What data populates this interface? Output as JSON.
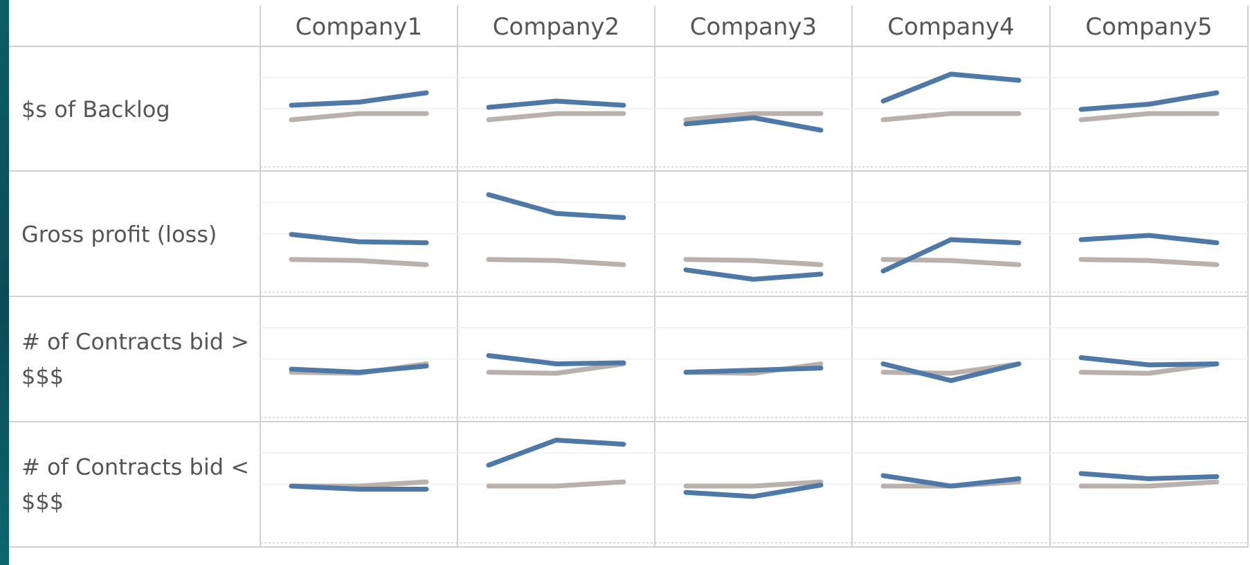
{
  "chart_data": {
    "type": "line",
    "columns": [
      "Company1",
      "Company2",
      "Company3",
      "Company4",
      "Company5"
    ],
    "rows": [
      {
        "label": [
          "$s of Backlog"
        ],
        "ylim": [
          0,
          10
        ]
      },
      {
        "label": [
          "Gross profit (loss)"
        ],
        "ylim": [
          0,
          10
        ]
      },
      {
        "label": [
          "# of Contracts bid >",
          "$$$"
        ],
        "ylim": [
          0,
          10
        ]
      },
      {
        "label": [
          "# of Contracts bid <",
          "$$$"
        ],
        "ylim": [
          0,
          10
        ]
      }
    ],
    "x": [
      1,
      2,
      3
    ],
    "series_colors": {
      "company": "#4e79a7",
      "benchmark": "#bab0ac"
    },
    "cells": [
      [
        {
          "company": [
            5.4,
            5.7,
            6.6
          ],
          "benchmark": [
            4.0,
            4.6,
            4.6
          ]
        },
        {
          "company": [
            5.2,
            5.8,
            5.4
          ],
          "benchmark": [
            4.0,
            4.6,
            4.6
          ]
        },
        {
          "company": [
            3.6,
            4.2,
            3.0
          ],
          "benchmark": [
            4.0,
            4.6,
            4.6
          ]
        },
        {
          "company": [
            5.8,
            8.4,
            7.8
          ],
          "benchmark": [
            4.0,
            4.6,
            4.6
          ]
        },
        {
          "company": [
            5.0,
            5.5,
            6.6
          ],
          "benchmark": [
            4.0,
            4.6,
            4.6
          ]
        }
      ],
      [
        {
          "company": [
            5.0,
            4.3,
            4.2
          ],
          "benchmark": [
            2.6,
            2.5,
            2.1
          ]
        },
        {
          "company": [
            8.8,
            7.0,
            6.6
          ],
          "benchmark": [
            2.6,
            2.5,
            2.1
          ]
        },
        {
          "company": [
            1.6,
            0.7,
            1.2
          ],
          "benchmark": [
            2.6,
            2.5,
            2.1
          ]
        },
        {
          "company": [
            1.5,
            4.5,
            4.2
          ],
          "benchmark": [
            2.6,
            2.5,
            2.1
          ]
        },
        {
          "company": [
            4.5,
            4.9,
            4.2
          ],
          "benchmark": [
            2.6,
            2.5,
            2.1
          ]
        }
      ],
      [
        {
          "company": [
            4.1,
            3.8,
            4.4
          ],
          "benchmark": [
            3.8,
            3.7,
            4.6
          ]
        },
        {
          "company": [
            5.4,
            4.6,
            4.7
          ],
          "benchmark": [
            3.8,
            3.7,
            4.6
          ]
        },
        {
          "company": [
            3.8,
            4.0,
            4.2
          ],
          "benchmark": [
            3.8,
            3.7,
            4.6
          ]
        },
        {
          "company": [
            4.6,
            3.0,
            4.6
          ],
          "benchmark": [
            3.8,
            3.7,
            4.6
          ]
        },
        {
          "company": [
            5.2,
            4.5,
            4.6
          ],
          "benchmark": [
            3.8,
            3.7,
            4.6
          ]
        }
      ],
      [
        {
          "company": [
            4.9,
            4.6,
            4.6
          ],
          "benchmark": [
            4.9,
            4.9,
            5.3
          ]
        },
        {
          "company": [
            6.9,
            9.3,
            8.9
          ],
          "benchmark": [
            4.9,
            4.9,
            5.3
          ]
        },
        {
          "company": [
            4.3,
            3.9,
            5.0
          ],
          "benchmark": [
            4.9,
            4.9,
            5.3
          ]
        },
        {
          "company": [
            5.9,
            4.9,
            5.6
          ],
          "benchmark": [
            4.9,
            4.9,
            5.3
          ]
        },
        {
          "company": [
            6.1,
            5.6,
            5.8
          ],
          "benchmark": [
            4.9,
            4.9,
            5.3
          ]
        }
      ]
    ]
  }
}
